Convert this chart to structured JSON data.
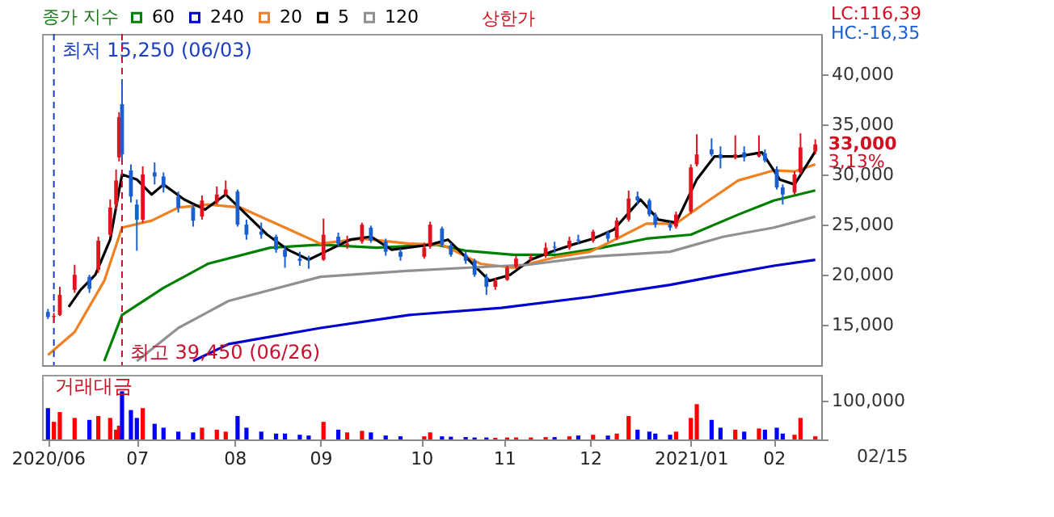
{
  "chart_data": [
    {
      "type": "candlestick",
      "legend_title": "종가 지수",
      "legend": "top left",
      "tick_labels": "y",
      "x": [
        "2020-06-01",
        "2020-06-03",
        "2020-06-05",
        "2020-06-10",
        "2020-06-15",
        "2020-06-18",
        "2020-06-22",
        "2020-06-24",
        "2020-06-25",
        "2020-06-26",
        "2020-06-29",
        "2020-07-01",
        "2020-07-03",
        "2020-07-07",
        "2020-07-10",
        "2020-07-15",
        "2020-07-20",
        "2020-07-23",
        "2020-07-28",
        "2020-07-31",
        "2020-08-04",
        "2020-08-07",
        "2020-08-12",
        "2020-08-17",
        "2020-08-20",
        "2020-08-25",
        "2020-08-28",
        "2020-09-02",
        "2020-09-07",
        "2020-09-10",
        "2020-09-15",
        "2020-09-18",
        "2020-09-23",
        "2020-09-28",
        "2020-10-06",
        "2020-10-08",
        "2020-10-12",
        "2020-10-15",
        "2020-10-20",
        "2020-10-23",
        "2020-10-27",
        "2020-10-30",
        "2020-11-03",
        "2020-11-06",
        "2020-11-11",
        "2020-11-16",
        "2020-11-19",
        "2020-11-24",
        "2020-11-27",
        "2020-12-02",
        "2020-12-07",
        "2020-12-10",
        "2020-12-14",
        "2020-12-17",
        "2020-12-21",
        "2020-12-23",
        "2020-12-28",
        "2020-12-30",
        "2021-01-04",
        "2021-01-06",
        "2021-01-11",
        "2021-01-14",
        "2021-01-19",
        "2021-01-22",
        "2021-01-27",
        "2021-01-29",
        "2021-02-02",
        "2021-02-04",
        "2021-02-08",
        "2021-02-10",
        "2021-02-15"
      ],
      "ohlc": [
        [
          16300,
          16600,
          15600,
          15800
        ],
        [
          15800,
          16200,
          15250,
          15900
        ],
        [
          16000,
          18800,
          15900,
          18000
        ],
        [
          18500,
          21000,
          18200,
          20000
        ],
        [
          19800,
          20000,
          18200,
          18600
        ],
        [
          20500,
          23800,
          20200,
          23400
        ],
        [
          24000,
          27500,
          23800,
          26700
        ],
        [
          27000,
          30500,
          26500,
          29400
        ],
        [
          31700,
          36200,
          31300,
          35700
        ],
        [
          37000,
          39450,
          31500,
          32000
        ],
        [
          30400,
          31000,
          27200,
          27800
        ],
        [
          27000,
          27500,
          22400,
          25500
        ],
        [
          25500,
          30800,
          25200,
          30000
        ],
        [
          30200,
          31200,
          29000,
          29800
        ],
        [
          29800,
          30200,
          28200,
          28700
        ],
        [
          27800,
          28300,
          26200,
          26700
        ],
        [
          26700,
          27000,
          24800,
          25400
        ],
        [
          25800,
          27900,
          25500,
          27400
        ],
        [
          27200,
          28800,
          27000,
          28000
        ],
        [
          28000,
          29400,
          27800,
          28500
        ],
        [
          28300,
          28500,
          24800,
          25000
        ],
        [
          25000,
          25500,
          23500,
          24000
        ],
        [
          24300,
          25200,
          23600,
          24000
        ],
        [
          23800,
          24000,
          22200,
          22500
        ],
        [
          22500,
          22900,
          20700,
          21800
        ],
        [
          21600,
          22300,
          20900,
          21400
        ],
        [
          21500,
          21900,
          20600,
          21400
        ],
        [
          21500,
          25600,
          21400,
          24000
        ],
        [
          23800,
          24200,
          22800,
          23100
        ],
        [
          23000,
          23900,
          22600,
          23100
        ],
        [
          23300,
          25200,
          23100,
          25000
        ],
        [
          24700,
          24900,
          23200,
          23400
        ],
        [
          23300,
          23600,
          21900,
          22300
        ],
        [
          22300,
          22600,
          21400,
          21800
        ],
        [
          21800,
          23200,
          21600,
          22700
        ],
        [
          22800,
          25300,
          22600,
          25000
        ],
        [
          24600,
          24800,
          22800,
          23000
        ],
        [
          22900,
          23200,
          21800,
          22000
        ],
        [
          22000,
          22300,
          21100,
          21400
        ],
        [
          21400,
          21600,
          19800,
          20000
        ],
        [
          19800,
          20100,
          18000,
          18800
        ],
        [
          18800,
          19700,
          18500,
          19400
        ],
        [
          19500,
          20900,
          19400,
          20700
        ],
        [
          20800,
          21900,
          20600,
          21600
        ],
        [
          21600,
          22100,
          21400,
          21800
        ],
        [
          21900,
          23200,
          21700,
          22700
        ],
        [
          22800,
          23300,
          22200,
          22700
        ],
        [
          22700,
          23800,
          22500,
          23400
        ],
        [
          23500,
          24000,
          23100,
          23400
        ],
        [
          23400,
          24500,
          23200,
          24300
        ],
        [
          24200,
          24400,
          23300,
          23600
        ],
        [
          23700,
          25700,
          23500,
          25400
        ],
        [
          25500,
          28400,
          25300,
          27600
        ],
        [
          27800,
          28300,
          27000,
          27400
        ],
        [
          27400,
          27600,
          25800,
          26000
        ],
        [
          26000,
          26200,
          24700,
          25000
        ],
        [
          25000,
          25300,
          24400,
          24700
        ],
        [
          24800,
          26300,
          24600,
          26000
        ],
        [
          26300,
          31000,
          26100,
          30700
        ],
        [
          31000,
          34000,
          30800,
          32000
        ],
        [
          32500,
          33600,
          31800,
          32000
        ],
        [
          32000,
          32800,
          30600,
          31600
        ],
        [
          31700,
          33900,
          31500,
          32000
        ],
        [
          32200,
          32800,
          31300,
          31700
        ],
        [
          31800,
          33900,
          31700,
          32000
        ],
        [
          32100,
          32500,
          31200,
          31400
        ],
        [
          30500,
          30800,
          28500,
          28700
        ],
        [
          28700,
          29000,
          27000,
          28000
        ],
        [
          28200,
          30300,
          28000,
          30000
        ],
        [
          30200,
          34100,
          30000,
          32700
        ],
        [
          32300,
          33500,
          32000,
          33000
        ]
      ],
      "series": [
        {
          "name": "60",
          "type": "line",
          "color": "#008000",
          "x": [
            "2020-06-20",
            "2020-06-26",
            "2020-07-10",
            "2020-07-25",
            "2020-08-15",
            "2020-09-01",
            "2020-09-20",
            "2020-10-10",
            "2020-10-20",
            "2020-11-05",
            "2020-11-20",
            "2020-12-05",
            "2020-12-20",
            "2021-01-04",
            "2021-01-20",
            "2021-02-01",
            "2021-02-15"
          ],
          "values": [
            11400,
            16000,
            18700,
            21100,
            22700,
            23000,
            22700,
            23000,
            22400,
            22000,
            22000,
            22700,
            23600,
            24000,
            26000,
            27400,
            28400
          ]
        },
        {
          "name": "240",
          "type": "line",
          "color": "#0000cc",
          "x": [
            "2020-07-20",
            "2020-08-01",
            "2020-09-01",
            "2020-10-01",
            "2020-11-01",
            "2020-12-01",
            "2020-12-28",
            "2021-01-15",
            "2021-02-01",
            "2021-02-15"
          ],
          "values": [
            11400,
            13100,
            14700,
            16000,
            16700,
            17800,
            19000,
            20000,
            20900,
            21500
          ]
        },
        {
          "name": "20",
          "type": "line",
          "color": "#f08020",
          "x": [
            "2020-06-01",
            "2020-06-10",
            "2020-06-20",
            "2020-06-26",
            "2020-07-06",
            "2020-07-15",
            "2020-07-25",
            "2020-08-05",
            "2020-08-20",
            "2020-09-01",
            "2020-09-15",
            "2020-10-01",
            "2020-10-12",
            "2020-10-25",
            "2020-11-05",
            "2020-11-20",
            "2020-12-01",
            "2020-12-10",
            "2020-12-20",
            "2020-12-30",
            "2021-01-08",
            "2021-01-20",
            "2021-02-01",
            "2021-02-08",
            "2021-02-15"
          ],
          "values": [
            12000,
            14300,
            19400,
            24700,
            25400,
            26700,
            27000,
            26700,
            24700,
            23100,
            23600,
            23100,
            23000,
            21100,
            20700,
            21800,
            22300,
            23600,
            25100,
            25100,
            27000,
            29400,
            30400,
            30300,
            31000
          ]
        },
        {
          "name": "5",
          "type": "line",
          "color": "#000000",
          "x": [
            "2020-06-08",
            "2020-06-12",
            "2020-06-17",
            "2020-06-22",
            "2020-06-26",
            "2020-07-01",
            "2020-07-06",
            "2020-07-10",
            "2020-07-17",
            "2020-07-24",
            "2020-07-31",
            "2020-08-07",
            "2020-08-14",
            "2020-08-21",
            "2020-08-28",
            "2020-09-04",
            "2020-09-11",
            "2020-09-18",
            "2020-09-25",
            "2020-10-08",
            "2020-10-14",
            "2020-10-21",
            "2020-10-28",
            "2020-11-04",
            "2020-11-11",
            "2020-11-18",
            "2020-11-25",
            "2020-12-02",
            "2020-12-09",
            "2020-12-15",
            "2020-12-18",
            "2020-12-24",
            "2020-12-30",
            "2021-01-06",
            "2021-01-12",
            "2021-01-20",
            "2021-01-28",
            "2021-02-03",
            "2021-02-08",
            "2021-02-15"
          ],
          "values": [
            16800,
            18500,
            20000,
            23500,
            30000,
            29500,
            28000,
            29000,
            27500,
            26500,
            28000,
            26000,
            24000,
            22500,
            21500,
            22500,
            23500,
            23800,
            22500,
            23000,
            23500,
            21500,
            19400,
            20000,
            21500,
            22300,
            23000,
            23600,
            24500,
            26500,
            27500,
            25500,
            25200,
            29500,
            31800,
            31800,
            32200,
            29500,
            29000,
            32300
          ]
        },
        {
          "name": "120",
          "type": "line",
          "color": "#909090",
          "x": [
            "2020-07-01",
            "2020-07-15",
            "2020-08-01",
            "2020-09-01",
            "2020-10-01",
            "2020-10-20",
            "2020-11-10",
            "2020-12-01",
            "2020-12-28",
            "2021-01-15",
            "2021-02-01",
            "2021-02-15"
          ],
          "values": [
            11400,
            14700,
            17400,
            19800,
            20400,
            20700,
            21000,
            21800,
            22300,
            23800,
            24700,
            25800
          ]
        }
      ],
      "ref_lines": [
        {
          "axis": "x",
          "value": "2020-06-03",
          "label": "최저 15,250 (06/03)",
          "color": "#1a3fc0",
          "line_style": "dashed"
        },
        {
          "axis": "x",
          "value": "2020-06-26",
          "label": "최고 39,450 (06/26)",
          "color": "#c8102e",
          "line_style": "dashed"
        }
      ],
      "annotations": [
        "상한가",
        "LC:116,39",
        "HC:-16,35",
        {
          "text": "33,000",
          "x": "2021-02-15",
          "y": 33000
        },
        {
          "text": "3,13%",
          "x": "2021-02-15",
          "y": 33000
        }
      ],
      "xlim": [
        "2020-05-30",
        "2021-02-17"
      ],
      "ylim": [
        11000,
        44000
      ],
      "yticks": [
        {
          "value": 15000,
          "label": "15,000"
        },
        {
          "value": 20000,
          "label": "20,000"
        },
        {
          "value": 25000,
          "label": "25,000"
        },
        {
          "value": 30000,
          "label": "30,000"
        },
        {
          "value": 35000,
          "label": "35,000"
        },
        {
          "value": 40000,
          "label": "40,000"
        }
      ]
    },
    {
      "type": "bar",
      "title": "거래대금",
      "x": [
        "2020-06-01",
        "2020-06-03",
        "2020-06-05",
        "2020-06-10",
        "2020-06-15",
        "2020-06-18",
        "2020-06-22",
        "2020-06-24",
        "2020-06-25",
        "2020-06-26",
        "2020-06-29",
        "2020-07-01",
        "2020-07-03",
        "2020-07-07",
        "2020-07-10",
        "2020-07-15",
        "2020-07-20",
        "2020-07-23",
        "2020-07-28",
        "2020-07-31",
        "2020-08-04",
        "2020-08-07",
        "2020-08-12",
        "2020-08-17",
        "2020-08-20",
        "2020-08-25",
        "2020-08-28",
        "2020-09-02",
        "2020-09-07",
        "2020-09-10",
        "2020-09-15",
        "2020-09-18",
        "2020-09-23",
        "2020-09-28",
        "2020-10-06",
        "2020-10-08",
        "2020-10-12",
        "2020-10-15",
        "2020-10-20",
        "2020-10-23",
        "2020-10-27",
        "2020-10-30",
        "2020-11-03",
        "2020-11-06",
        "2020-11-11",
        "2020-11-16",
        "2020-11-19",
        "2020-11-24",
        "2020-11-27",
        "2020-12-02",
        "2020-12-07",
        "2020-12-10",
        "2020-12-14",
        "2020-12-17",
        "2020-12-21",
        "2020-12-23",
        "2020-12-28",
        "2020-12-30",
        "2021-01-04",
        "2021-01-06",
        "2021-01-11",
        "2021-01-14",
        "2021-01-19",
        "2021-01-22",
        "2021-01-27",
        "2021-01-29",
        "2021-02-02",
        "2021-02-04",
        "2021-02-08",
        "2021-02-10",
        "2021-02-15"
      ],
      "values": [
        80000,
        45000,
        70000,
        55000,
        50000,
        60000,
        55000,
        25000,
        35000,
        123000,
        75000,
        55000,
        80000,
        40000,
        30000,
        20000,
        18000,
        30000,
        25000,
        20000,
        60000,
        30000,
        20000,
        15000,
        15000,
        12000,
        10000,
        45000,
        25000,
        18000,
        22000,
        18000,
        10000,
        8000,
        8000,
        18000,
        8000,
        7000,
        6000,
        5000,
        5000,
        4000,
        5000,
        5000,
        5000,
        6000,
        6000,
        8000,
        10000,
        12000,
        10000,
        15000,
        60000,
        25000,
        20000,
        15000,
        12000,
        20000,
        55000,
        90000,
        50000,
        30000,
        25000,
        20000,
        28000,
        25000,
        30000,
        15000,
        12000,
        55000,
        8000
      ],
      "colors": [
        "#0000ff",
        "#ff0000",
        "#ff0000",
        "#ff0000",
        "#0000ff",
        "#ff0000",
        "#ff0000",
        "#ff0000",
        "#ff0000",
        "#0000ff",
        "#0000ff",
        "#0000ff",
        "#ff0000",
        "#0000ff",
        "#0000ff",
        "#0000ff",
        "#0000ff",
        "#ff0000",
        "#ff0000",
        "#ff0000",
        "#0000ff",
        "#0000ff",
        "#0000ff",
        "#0000ff",
        "#0000ff",
        "#0000ff",
        "#0000ff",
        "#ff0000",
        "#0000ff",
        "#ff0000",
        "#ff0000",
        "#0000ff",
        "#0000ff",
        "#0000ff",
        "#ff0000",
        "#ff0000",
        "#0000ff",
        "#0000ff",
        "#0000ff",
        "#0000ff",
        "#0000ff",
        "#ff0000",
        "#ff0000",
        "#ff0000",
        "#ff0000",
        "#ff0000",
        "#0000ff",
        "#ff0000",
        "#0000ff",
        "#ff0000",
        "#0000ff",
        "#ff0000",
        "#ff0000",
        "#0000ff",
        "#0000ff",
        "#0000ff",
        "#0000ff",
        "#ff0000",
        "#ff0000",
        "#ff0000",
        "#0000ff",
        "#0000ff",
        "#ff0000",
        "#0000ff",
        "#ff0000",
        "#0000ff",
        "#0000ff",
        "#0000ff",
        "#ff0000",
        "#ff0000",
        "#ff0000"
      ],
      "annotations": [
        "02/15"
      ],
      "xlim": [
        "2020-05-30",
        "2021-02-17"
      ],
      "xticks": [
        {
          "value": "2020-06-01",
          "label": "2020/06"
        },
        {
          "value": "2020-07-01",
          "label": "07"
        },
        {
          "value": "2020-08-03",
          "label": "08"
        },
        {
          "value": "2020-09-01",
          "label": "09"
        },
        {
          "value": "2020-10-05",
          "label": "10"
        },
        {
          "value": "2020-11-02",
          "label": "11"
        },
        {
          "value": "2020-12-01",
          "label": "12"
        },
        {
          "value": "2021-01-04",
          "label": "2021/01"
        },
        {
          "value": "2021-02-01",
          "label": "02"
        }
      ],
      "ylim": [
        0,
        165000
      ],
      "yticks": [
        {
          "value": 0,
          "label": null
        },
        {
          "value": 100000,
          "label": "100,000"
        }
      ]
    }
  ]
}
